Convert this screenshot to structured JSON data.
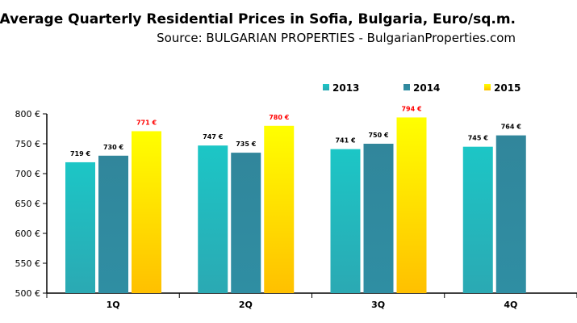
{
  "chart_data": {
    "type": "bar",
    "title": "Average Quarterly Residential Prices in Sofia, Bulgaria, Euro/sq.m.",
    "subtitle": "Source: BULGARIAN PROPERTIES - BulgarianProperties.com",
    "categories": [
      "1Q",
      "2Q",
      "3Q",
      "4Q"
    ],
    "series": [
      {
        "name": "2013",
        "values": [
          719,
          747,
          741,
          745
        ],
        "labels": [
          "719 €",
          "747 €",
          "741 €",
          "745 €"
        ],
        "color": "#1cc4c4",
        "label_color": "#000000"
      },
      {
        "name": "2014",
        "values": [
          730,
          735,
          750,
          764
        ],
        "labels": [
          "730 €",
          "735 €",
          "750 €",
          "764 €"
        ],
        "color": "#31869b",
        "label_color": "#000000"
      },
      {
        "name": "2015",
        "values": [
          771,
          780,
          794,
          null
        ],
        "labels": [
          "771 €",
          "780 €",
          "794 €",
          null
        ],
        "color": "#ffff00",
        "label_color": "#ff0000"
      }
    ],
    "ylim": [
      500,
      800
    ],
    "yticks": [
      500,
      550,
      600,
      650,
      700,
      750,
      800
    ],
    "ytick_labels": [
      "500 €",
      "550 €",
      "600 €",
      "650 €",
      "700 €",
      "750 €",
      "800 €"
    ],
    "xlabel": "",
    "ylabel": "",
    "legend_position": "top-right",
    "grid": false
  }
}
